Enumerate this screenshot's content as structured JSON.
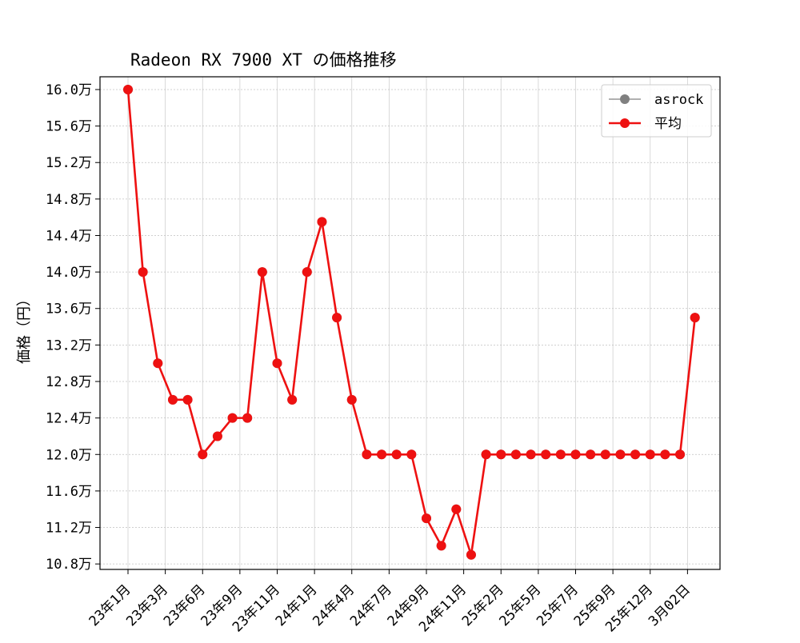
{
  "chart_data": {
    "type": "line",
    "title": "Radeon RX 7900 XT の価格推移",
    "xlabel": "",
    "ylabel": "価格（円）",
    "x_tick_labels": [
      "23年1月",
      "23年3月",
      "23年6月",
      "23年9月",
      "23年11月",
      "24年1月",
      "24年4月",
      "24年7月",
      "24年9月",
      "24年11月",
      "25年2月",
      "25年5月",
      "25年7月",
      "25年9月",
      "25年12月",
      "3月02日"
    ],
    "y_tick_labels": [
      "10.8万",
      "11.2万",
      "11.6万",
      "12.0万",
      "12.4万",
      "12.8万",
      "13.2万",
      "13.6万",
      "14.0万",
      "14.4万",
      "14.8万",
      "15.2万",
      "15.6万",
      "16.0万"
    ],
    "y_ticks": [
      108000,
      112000,
      116000,
      120000,
      124000,
      128000,
      132000,
      136000,
      140000,
      144000,
      148000,
      152000,
      156000,
      160000
    ],
    "ylim": [
      107400,
      161400
    ],
    "grid": true,
    "legend_position": "top-right",
    "series": [
      {
        "name": "asrock",
        "color": "#808080",
        "values": [
          160000,
          140000,
          130000,
          126000,
          126000,
          120000,
          122000,
          124000,
          124000,
          140000,
          130000,
          126000,
          140000,
          145500,
          135000,
          126000,
          120000,
          120000,
          120000,
          120000,
          113000,
          110000,
          114000,
          109000,
          120000,
          120000,
          120000,
          120000,
          120000,
          120000,
          120000,
          120000,
          120000,
          120000,
          120000,
          120000,
          120000,
          120000,
          135000
        ]
      },
      {
        "name": "平均",
        "color": "#ee1111",
        "values": [
          160000,
          140000,
          130000,
          126000,
          126000,
          120000,
          122000,
          124000,
          124000,
          140000,
          130000,
          126000,
          140000,
          145500,
          135000,
          126000,
          120000,
          120000,
          120000,
          120000,
          113000,
          110000,
          114000,
          109000,
          120000,
          120000,
          120000,
          120000,
          120000,
          120000,
          120000,
          120000,
          120000,
          120000,
          120000,
          120000,
          120000,
          120000,
          135000
        ]
      }
    ]
  }
}
